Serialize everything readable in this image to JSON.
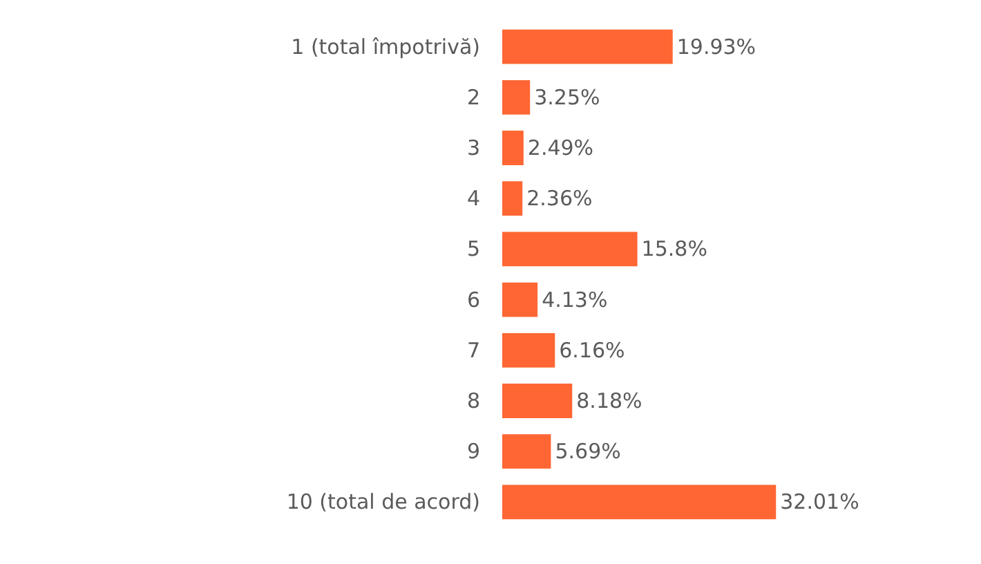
{
  "chart_data": {
    "type": "bar",
    "orientation": "horizontal",
    "categories": [
      "1 (total împotrivă)",
      "2",
      "3",
      "4",
      "5",
      "6",
      "7",
      "8",
      "9",
      "10 (total de acord)"
    ],
    "values": [
      19.93,
      3.25,
      2.49,
      2.36,
      15.8,
      4.13,
      6.16,
      8.18,
      5.69,
      32.01
    ],
    "color": "#ff6633",
    "value_labels": [
      "19.93%",
      "3.25%",
      "2.49%",
      "2.36%",
      "15.8%",
      "4.13%",
      "6.16%",
      "8.18%",
      "5.69%",
      "32.01%"
    ]
  }
}
